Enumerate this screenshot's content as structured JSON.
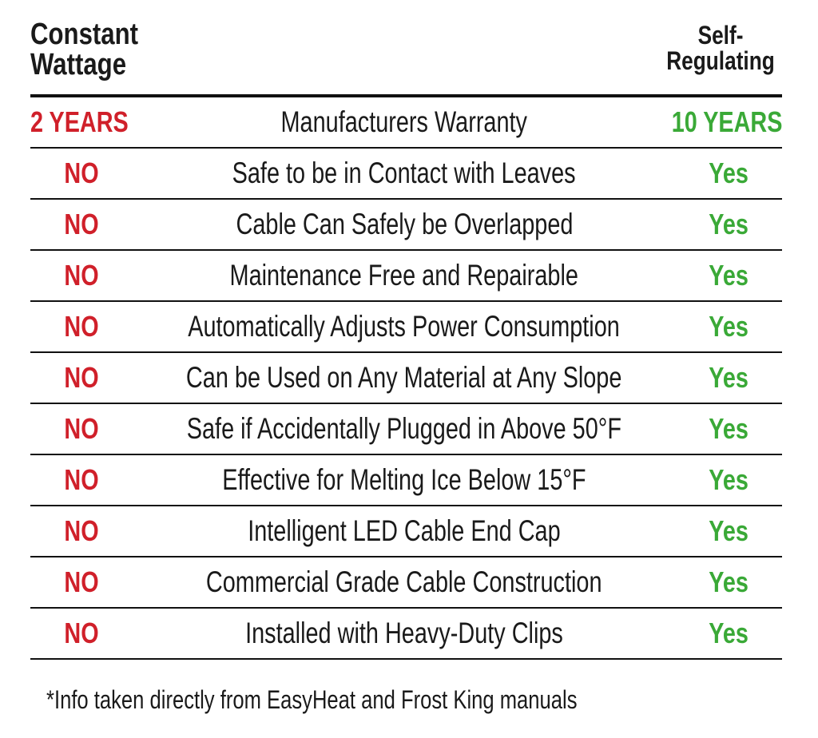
{
  "header": {
    "left_line1": "Constant",
    "left_line2": "Wattage",
    "right_line1": "Self-",
    "right_line2": "Regulating"
  },
  "colors": {
    "negative": "#d0202a",
    "positive": "#3aa937",
    "rule": "#111111"
  },
  "rows": [
    {
      "left": "2 YEARS",
      "feature": "Manufacturers Warranty",
      "right": "10 YEARS"
    },
    {
      "left": "NO",
      "feature": "Safe to be in Contact with Leaves",
      "right": "Yes"
    },
    {
      "left": "NO",
      "feature": "Cable Can Safely be Overlapped",
      "right": "Yes"
    },
    {
      "left": "NO",
      "feature": "Maintenance Free and Repairable",
      "right": "Yes"
    },
    {
      "left": "NO",
      "feature": "Automatically Adjusts Power Consumption",
      "right": "Yes"
    },
    {
      "left": "NO",
      "feature": "Can be Used on Any Material at Any Slope",
      "right": "Yes"
    },
    {
      "left": "NO",
      "feature": "Safe if Accidentally Plugged in Above 50°F",
      "right": "Yes"
    },
    {
      "left": "NO",
      "feature": "Effective for Melting Ice Below 15°F",
      "right": "Yes"
    },
    {
      "left": "NO",
      "feature": "Intelligent LED Cable End Cap",
      "right": "Yes"
    },
    {
      "left": "NO",
      "feature": "Commercial Grade Cable Construction",
      "right": "Yes"
    },
    {
      "left": "NO",
      "feature": "Installed with Heavy-Duty Clips",
      "right": "Yes"
    }
  ],
  "footnote": "*Info taken directly from EasyHeat and Frost King manuals"
}
